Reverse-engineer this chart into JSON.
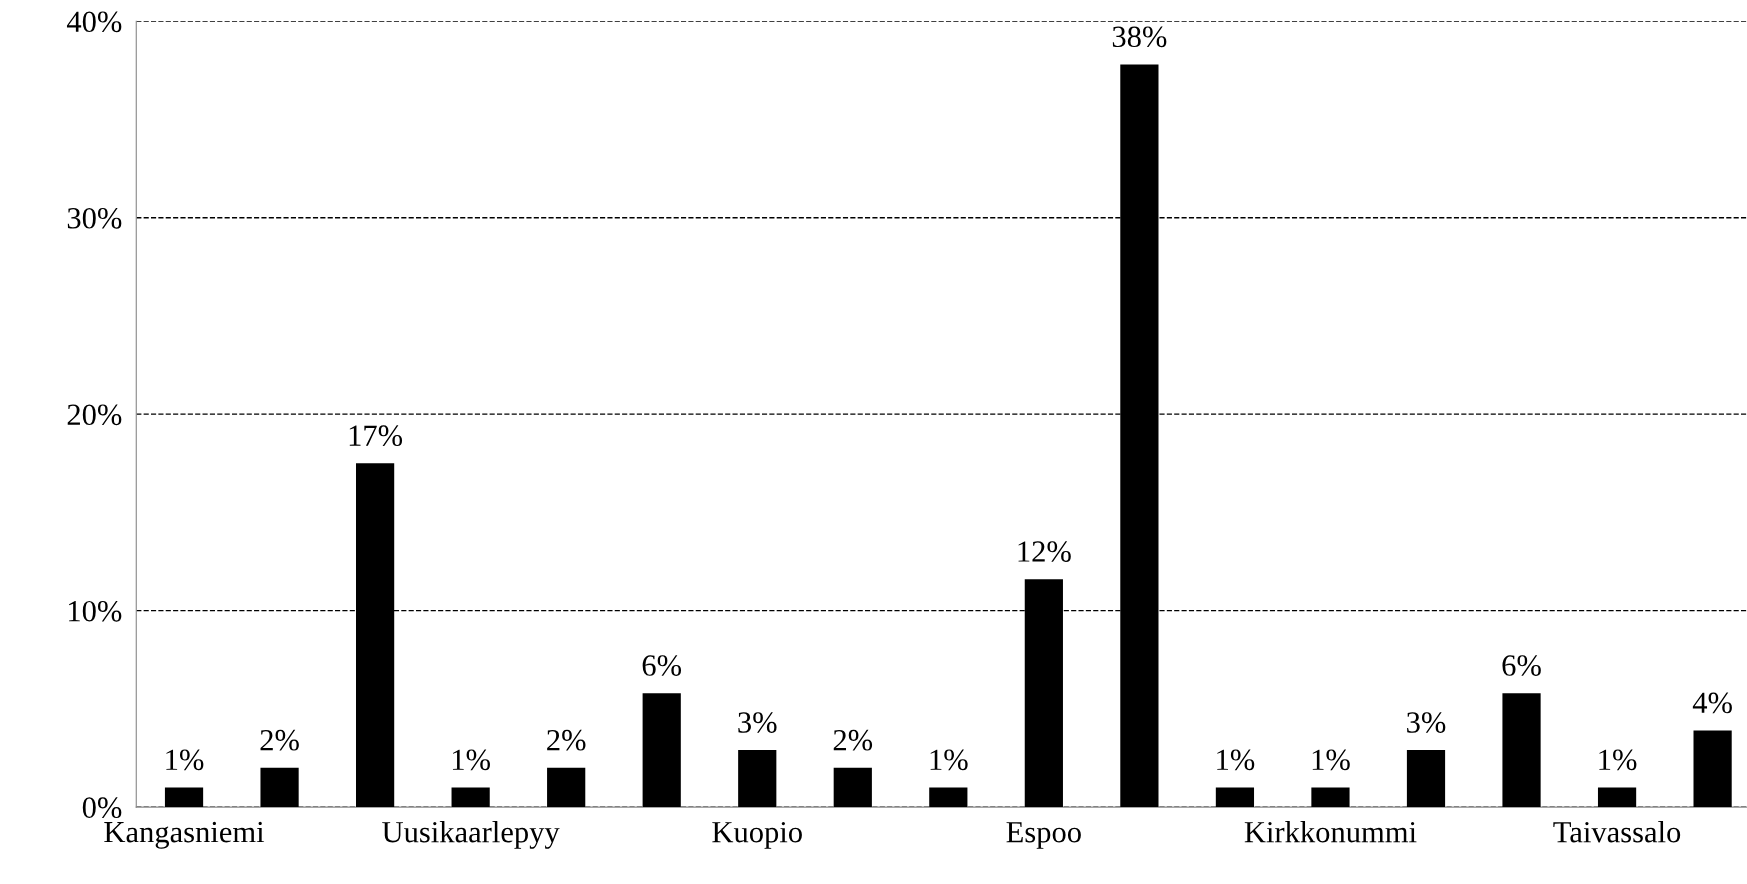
{
  "chart_data": {
    "type": "bar",
    "categories": [
      "Kangasniemi",
      null,
      null,
      "Uusikaarlepyy",
      null,
      null,
      "Kuopio",
      null,
      null,
      "Espoo",
      null,
      null,
      "Kirkkonummi",
      null,
      null,
      "Taivassalo",
      null
    ],
    "values": [
      1,
      2,
      17.5,
      1,
      2,
      5.8,
      2.9,
      2,
      1,
      11.6,
      37.8,
      1,
      1,
      2.9,
      5.8,
      1,
      3.9
    ],
    "value_labels": [
      "1%",
      "2%",
      "17%",
      "1%",
      "2%",
      "6%",
      "3%",
      "2%",
      "1%",
      "12%",
      "38%",
      "1%",
      "1%",
      "3%",
      "6%",
      "1%",
      "4%"
    ],
    "color": "#000000",
    "ylim": [
      0,
      40
    ],
    "yticks": [
      {
        "value": 0,
        "label": "0%"
      },
      {
        "value": 10,
        "label": "10%"
      },
      {
        "value": 20,
        "label": "20%"
      },
      {
        "value": 30,
        "label": "30%"
      },
      {
        "value": 40,
        "label": "40%"
      }
    ],
    "grid": "y",
    "line_style": "dashed",
    "legend": false
  }
}
